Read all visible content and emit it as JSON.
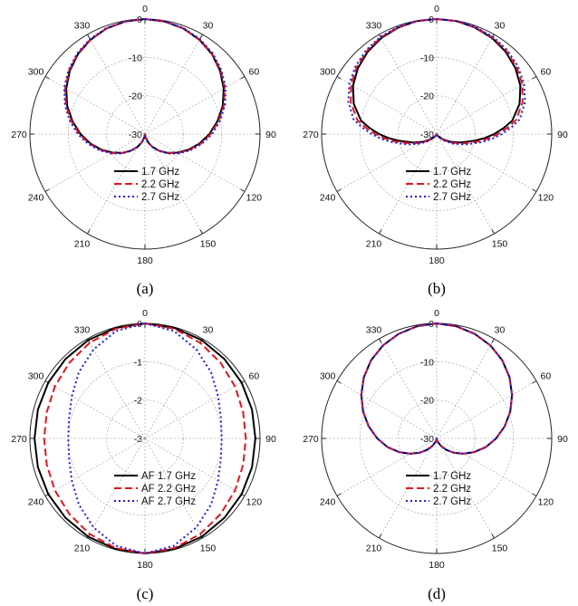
{
  "panels": [
    {
      "caption": "(a)"
    },
    {
      "caption": "(b)"
    },
    {
      "caption": "(c)"
    },
    {
      "caption": "(d)"
    }
  ],
  "chart_data": [
    {
      "type": "polar-line",
      "angle_ticks": [
        "0",
        "30",
        "60",
        "90",
        "120",
        "150",
        "180",
        "210",
        "240",
        "270",
        "300",
        "330"
      ],
      "radial_ticks": [
        0,
        -10,
        -20,
        -30
      ],
      "radial_tick_labels": [
        "0",
        "-10",
        "-20",
        "-30"
      ],
      "rlim": [
        -30,
        0
      ],
      "grid": true,
      "legend_position": "lower-center",
      "series": [
        {
          "name": "1.7 GHz",
          "color": "#000000",
          "style": "solid",
          "theta": [
            0,
            10,
            20,
            30,
            40,
            50,
            60,
            70,
            80,
            90,
            100,
            110,
            120,
            130,
            140,
            150,
            160,
            170,
            180
          ],
          "r": [
            0,
            -0.2,
            -0.7,
            -1.6,
            -2.8,
            -4.4,
            -6.3,
            -8.4,
            -10.8,
            -13.2,
            -15.6,
            -18.0,
            -20.3,
            -22.4,
            -24.4,
            -26.2,
            -27.8,
            -29.2,
            -30
          ]
        },
        {
          "name": "2.2 GHz",
          "color": "#e8141c",
          "style": "dashed",
          "theta": [
            0,
            10,
            20,
            30,
            40,
            50,
            60,
            70,
            80,
            90,
            100,
            110,
            120,
            130,
            140,
            150,
            160,
            170,
            180
          ],
          "r": [
            0,
            -0.2,
            -0.7,
            -1.5,
            -2.7,
            -4.2,
            -6.0,
            -8.1,
            -10.5,
            -12.9,
            -15.3,
            -17.8,
            -20.1,
            -22.3,
            -24.3,
            -26.1,
            -27.8,
            -29.2,
            -30
          ]
        },
        {
          "name": "2.7 GHz",
          "color": "#1a1aee",
          "style": "dotted",
          "theta": [
            0,
            10,
            20,
            30,
            40,
            50,
            60,
            70,
            80,
            90,
            100,
            110,
            120,
            130,
            140,
            150,
            160,
            170,
            180
          ],
          "r": [
            0,
            -0.2,
            -0.6,
            -1.4,
            -2.5,
            -4.0,
            -5.7,
            -7.8,
            -10.1,
            -12.5,
            -15.0,
            -17.5,
            -19.9,
            -22.1,
            -24.2,
            -26.0,
            -27.7,
            -29.1,
            -30
          ]
        }
      ]
    },
    {
      "type": "polar-line",
      "angle_ticks": [
        "0",
        "30",
        "60",
        "90",
        "120",
        "150",
        "180",
        "210",
        "240",
        "270",
        "300",
        "330"
      ],
      "radial_ticks": [
        0,
        -10,
        -20,
        -30
      ],
      "radial_tick_labels": [
        "0",
        "-10",
        "-20",
        "-30"
      ],
      "rlim": [
        -30,
        0
      ],
      "grid": true,
      "legend_position": "lower-center",
      "series": [
        {
          "name": "1.7 GHz",
          "color": "#000000",
          "style": "solid",
          "theta": [
            0,
            10,
            20,
            30,
            40,
            50,
            60,
            70,
            80,
            85,
            90,
            95,
            100,
            110,
            120,
            130,
            140,
            150,
            160,
            170,
            180
          ],
          "r": [
            0,
            -0.1,
            -0.5,
            -1.1,
            -2.0,
            -3.2,
            -4.8,
            -7.0,
            -10.0,
            -12.5,
            -15.0,
            -17.5,
            -20.0,
            -23.5,
            -26.0,
            -27.8,
            -29.0,
            -29.6,
            -29.9,
            -30,
            -30
          ]
        },
        {
          "name": "2.2 GHz",
          "color": "#e8141c",
          "style": "dashed",
          "theta": [
            0,
            10,
            20,
            30,
            40,
            50,
            60,
            70,
            80,
            85,
            90,
            95,
            100,
            110,
            120,
            130,
            140,
            150,
            160,
            170,
            180
          ],
          "r": [
            0,
            -0.1,
            -0.4,
            -0.9,
            -1.7,
            -2.8,
            -4.2,
            -6.2,
            -9.0,
            -11.5,
            -14.0,
            -16.5,
            -19.0,
            -22.8,
            -25.5,
            -27.5,
            -28.8,
            -29.5,
            -29.9,
            -30,
            -30
          ]
        },
        {
          "name": "2.7 GHz",
          "color": "#1a1aee",
          "style": "dotted",
          "theta": [
            0,
            10,
            20,
            30,
            40,
            50,
            60,
            70,
            80,
            85,
            90,
            95,
            100,
            110,
            120,
            130,
            140,
            150,
            160,
            170,
            180
          ],
          "r": [
            0,
            -0.1,
            -0.3,
            -0.7,
            -1.4,
            -2.4,
            -3.7,
            -5.5,
            -8.0,
            -10.5,
            -13.0,
            -15.5,
            -18.0,
            -22.0,
            -25.0,
            -27.2,
            -28.6,
            -29.4,
            -29.8,
            -30,
            -30
          ]
        }
      ]
    },
    {
      "type": "polar-line",
      "angle_ticks": [
        "0",
        "30",
        "60",
        "90",
        "120",
        "150",
        "180",
        "210",
        "240",
        "270",
        "300",
        "330"
      ],
      "radial_ticks": [
        0,
        -1,
        -2,
        -3
      ],
      "radial_tick_labels": [
        "0",
        "-1",
        "-2",
        "-3"
      ],
      "rlim": [
        -3,
        0
      ],
      "grid": true,
      "legend_position": "lower-center",
      "series": [
        {
          "name": "AF 1.7 GHz",
          "color": "#000000",
          "style": "solid",
          "theta": [
            0,
            15,
            30,
            45,
            60,
            75,
            90,
            105,
            120,
            135,
            150,
            165,
            180
          ],
          "r": [
            0,
            -0.02,
            -0.04,
            -0.07,
            -0.09,
            -0.11,
            -0.12,
            -0.11,
            -0.09,
            -0.07,
            -0.04,
            -0.02,
            0
          ]
        },
        {
          "name": "AF 2.2 GHz",
          "color": "#e8141c",
          "style": "dashed",
          "theta": [
            0,
            15,
            30,
            45,
            60,
            75,
            90,
            105,
            120,
            135,
            150,
            165,
            180
          ],
          "r": [
            0,
            -0.04,
            -0.12,
            -0.21,
            -0.29,
            -0.35,
            -0.37,
            -0.35,
            -0.29,
            -0.21,
            -0.12,
            -0.04,
            0
          ]
        },
        {
          "name": "AF 2.7 GHz",
          "color": "#1a1aee",
          "style": "dotted",
          "theta": [
            0,
            15,
            30,
            45,
            60,
            75,
            90,
            105,
            120,
            135,
            150,
            165,
            180
          ],
          "r": [
            0,
            -0.1,
            -0.32,
            -0.56,
            -0.8,
            -0.95,
            -1.0,
            -0.95,
            -0.8,
            -0.56,
            -0.32,
            -0.1,
            0
          ]
        }
      ]
    },
    {
      "type": "polar-line",
      "angle_ticks": [
        "0",
        "30",
        "60",
        "90",
        "120",
        "150",
        "180",
        "210",
        "240",
        "270",
        "300",
        "330"
      ],
      "radial_ticks": [
        0,
        -10,
        -20,
        -30
      ],
      "radial_tick_labels": [
        "0",
        "-10",
        "-20",
        "-30"
      ],
      "rlim": [
        -30,
        0
      ],
      "grid": true,
      "legend_position": "lower-center",
      "series": [
        {
          "name": "1.7 GHz",
          "color": "#000000",
          "style": "solid",
          "theta": [
            0,
            10,
            20,
            30,
            40,
            50,
            60,
            70,
            80,
            90,
            100,
            110,
            120,
            130,
            140,
            150,
            160,
            170,
            180
          ],
          "r": [
            0,
            -0.3,
            -1.0,
            -2.0,
            -3.4,
            -5.2,
            -7.3,
            -9.6,
            -12.0,
            -14.5,
            -17.0,
            -19.6,
            -22.0,
            -24.2,
            -26.1,
            -27.7,
            -28.9,
            -29.7,
            -30
          ]
        },
        {
          "name": "2.2 GHz",
          "color": "#e8141c",
          "style": "dashed",
          "theta": [
            0,
            10,
            20,
            30,
            40,
            50,
            60,
            70,
            80,
            90,
            100,
            110,
            120,
            130,
            140,
            150,
            160,
            170,
            180
          ],
          "r": [
            0,
            -0.3,
            -1.0,
            -2.0,
            -3.4,
            -5.2,
            -7.3,
            -9.6,
            -12.0,
            -14.5,
            -17.0,
            -19.6,
            -22.0,
            -24.2,
            -26.1,
            -27.7,
            -28.9,
            -29.7,
            -30
          ]
        },
        {
          "name": "2.7 GHz",
          "color": "#1a1aee",
          "style": "dotted",
          "theta": [
            0,
            10,
            20,
            30,
            40,
            50,
            60,
            70,
            80,
            90,
            100,
            110,
            120,
            130,
            140,
            150,
            160,
            170,
            180
          ],
          "r": [
            0,
            -0.3,
            -1.0,
            -2.0,
            -3.4,
            -5.2,
            -7.3,
            -9.6,
            -12.0,
            -14.5,
            -17.0,
            -19.6,
            -22.0,
            -24.2,
            -26.1,
            -27.7,
            -28.9,
            -29.7,
            -30
          ]
        }
      ]
    }
  ]
}
